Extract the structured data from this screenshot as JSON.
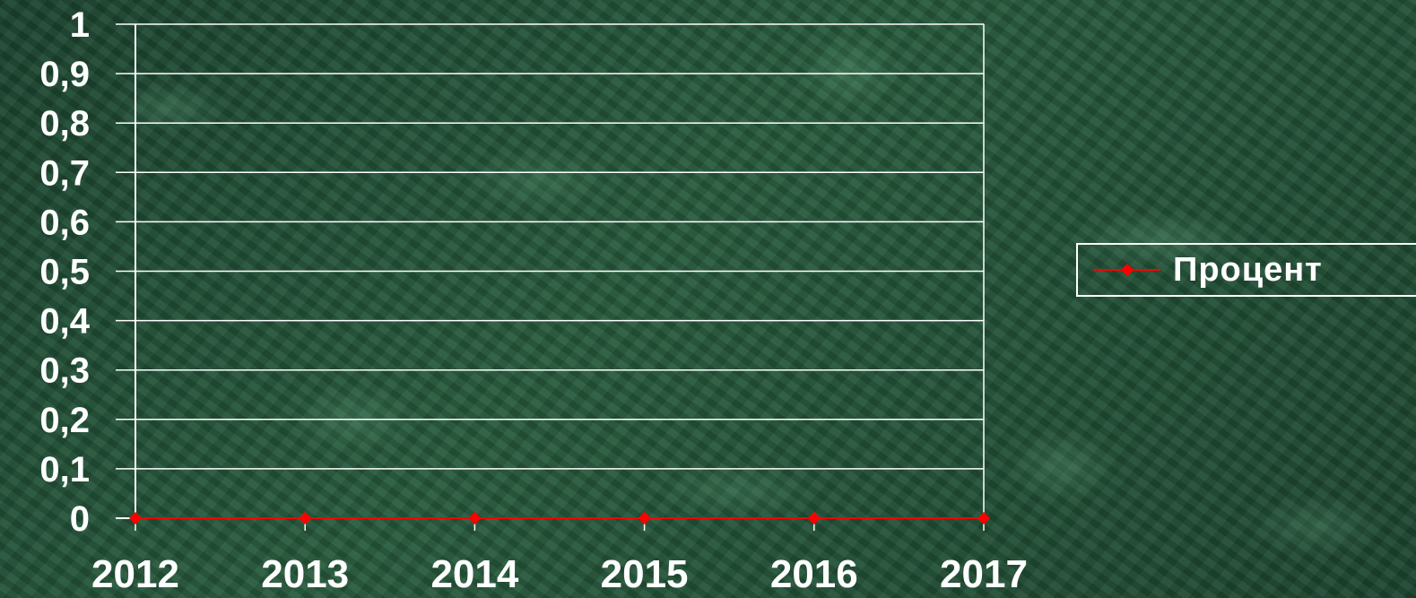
{
  "chart_data": {
    "type": "line",
    "categories": [
      "2012",
      "2013",
      "2014",
      "2015",
      "2016",
      "2017"
    ],
    "series": [
      {
        "name": "Процент",
        "values": [
          0,
          0,
          0,
          0,
          0,
          0
        ],
        "color": "#ff0000",
        "marker": "diamond"
      }
    ],
    "y_ticks": [
      "0",
      "0,1",
      "0,2",
      "0,3",
      "0,4",
      "0,5",
      "0,6",
      "0,7",
      "0,8",
      "0,9",
      "1"
    ],
    "ylim": [
      0,
      1
    ],
    "grid": true,
    "legend_position": "right"
  },
  "colors": {
    "series_line": "#ff0000",
    "grid": "#ffffff",
    "text": "#ffffff"
  }
}
